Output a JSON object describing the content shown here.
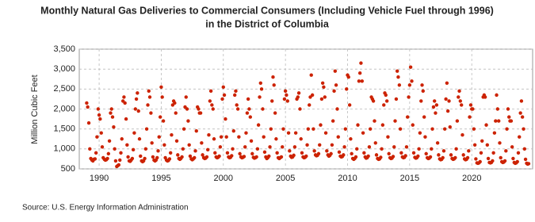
{
  "chart_data": {
    "type": "scatter",
    "title": "Monthly Natural Gas Deliveries to Commercial Consumers (Including Vehicle Fuel through 1996)",
    "subtitle": "in the District of Columbia",
    "y_label": "Million Cubic Feet",
    "source": "Source: U.S. Energy Information Administration",
    "xlim": [
      1988.4,
      2024.9
    ],
    "xticks": [
      1990,
      1995,
      2000,
      2005,
      2010,
      2015,
      2020
    ],
    "ylim": [
      500,
      3500
    ],
    "yticks": [
      500,
      {
        "value": 1000,
        "label": "1,000"
      },
      {
        "value": 1500,
        "label": "1,500"
      },
      {
        "value": 2000,
        "label": "2,000"
      },
      {
        "value": 2500,
        "label": "2,500"
      },
      {
        "value": 3000,
        "label": "3,000"
      },
      {
        "value": 3500,
        "label": "3,500"
      }
    ],
    "grid": true,
    "series": [
      {
        "color": "#cc2200",
        "x": [
          1989.0,
          1989.08,
          1989.17,
          1989.25,
          1989.33,
          1989.42,
          1989.5,
          1989.58,
          1989.67,
          1989.75,
          1989.83,
          1989.92,
          1990.0,
          1990.08,
          1990.17,
          1990.25,
          1990.33,
          1990.42,
          1990.5,
          1990.58,
          1990.67,
          1990.75,
          1990.83,
          1990.92,
          1991.0,
          1991.08,
          1991.17,
          1991.25,
          1991.33,
          1991.42,
          1991.5,
          1991.58,
          1991.67,
          1991.75,
          1991.83,
          1991.92,
          1992.0,
          1992.08,
          1992.17,
          1992.25,
          1992.33,
          1992.42,
          1992.5,
          1992.58,
          1992.67,
          1992.75,
          1992.83,
          1992.92,
          1993.0,
          1993.08,
          1993.17,
          1993.25,
          1993.33,
          1993.42,
          1993.5,
          1993.58,
          1993.67,
          1993.75,
          1993.83,
          1993.92,
          1994.0,
          1994.08,
          1994.17,
          1994.25,
          1994.33,
          1994.42,
          1994.5,
          1994.58,
          1994.67,
          1994.75,
          1994.83,
          1994.92,
          1995.0,
          1995.08,
          1995.17,
          1995.25,
          1995.33,
          1995.42,
          1995.5,
          1995.58,
          1995.67,
          1995.75,
          1995.83,
          1995.92,
          1996.0,
          1996.08,
          1996.17,
          1996.25,
          1996.33,
          1996.42,
          1996.5,
          1996.58,
          1996.67,
          1996.75,
          1996.83,
          1996.92,
          1997.0,
          1997.08,
          1997.17,
          1997.25,
          1997.33,
          1997.42,
          1997.5,
          1997.58,
          1997.67,
          1997.75,
          1997.83,
          1997.92,
          1998.0,
          1998.08,
          1998.17,
          1998.25,
          1998.33,
          1998.42,
          1998.5,
          1998.58,
          1998.67,
          1998.75,
          1998.83,
          1998.92,
          1999.0,
          1999.08,
          1999.17,
          1999.25,
          1999.33,
          1999.42,
          1999.5,
          1999.58,
          1999.67,
          1999.75,
          1999.83,
          1999.92,
          2000.0,
          2000.08,
          2000.17,
          2000.25,
          2000.33,
          2000.42,
          2000.5,
          2000.58,
          2000.67,
          2000.75,
          2000.83,
          2000.92,
          2001.0,
          2001.08,
          2001.17,
          2001.25,
          2001.33,
          2001.42,
          2001.5,
          2001.58,
          2001.67,
          2001.75,
          2001.83,
          2001.92,
          2002.0,
          2002.08,
          2002.17,
          2002.25,
          2002.33,
          2002.42,
          2002.5,
          2002.58,
          2002.67,
          2002.75,
          2002.83,
          2002.92,
          2003.0,
          2003.08,
          2003.17,
          2003.25,
          2003.33,
          2003.42,
          2003.5,
          2003.58,
          2003.67,
          2003.75,
          2003.83,
          2003.92,
          2004.0,
          2004.08,
          2004.17,
          2004.25,
          2004.33,
          2004.42,
          2004.5,
          2004.58,
          2004.67,
          2004.75,
          2004.83,
          2004.92,
          2005.0,
          2005.08,
          2005.17,
          2005.25,
          2005.33,
          2005.42,
          2005.5,
          2005.58,
          2005.67,
          2005.75,
          2005.83,
          2005.92,
          2006.0,
          2006.08,
          2006.17,
          2006.25,
          2006.33,
          2006.42,
          2006.5,
          2006.58,
          2006.67,
          2006.75,
          2006.83,
          2006.92,
          2007.0,
          2007.08,
          2007.17,
          2007.25,
          2007.33,
          2007.42,
          2007.5,
          2007.58,
          2007.67,
          2007.75,
          2007.83,
          2007.92,
          2008.0,
          2008.08,
          2008.17,
          2008.25,
          2008.33,
          2008.42,
          2008.5,
          2008.58,
          2008.67,
          2008.75,
          2008.83,
          2008.92,
          2009.0,
          2009.08,
          2009.17,
          2009.25,
          2009.33,
          2009.42,
          2009.5,
          2009.58,
          2009.67,
          2009.75,
          2009.83,
          2009.92,
          2010.0,
          2010.08,
          2010.17,
          2010.25,
          2010.33,
          2010.42,
          2010.5,
          2010.58,
          2010.67,
          2010.75,
          2010.83,
          2010.92,
          2011.0,
          2011.08,
          2011.17,
          2011.25,
          2011.33,
          2011.42,
          2011.5,
          2011.58,
          2011.67,
          2011.75,
          2011.83,
          2011.92,
          2012.0,
          2012.08,
          2012.17,
          2012.25,
          2012.33,
          2012.42,
          2012.5,
          2012.58,
          2012.67,
          2012.75,
          2012.83,
          2012.92,
          2013.0,
          2013.08,
          2013.17,
          2013.25,
          2013.33,
          2013.42,
          2013.5,
          2013.58,
          2013.67,
          2013.75,
          2013.83,
          2013.92,
          2014.0,
          2014.08,
          2014.17,
          2014.25,
          2014.33,
          2014.42,
          2014.5,
          2014.58,
          2014.67,
          2014.75,
          2014.83,
          2014.92,
          2015.0,
          2015.08,
          2015.17,
          2015.25,
          2015.33,
          2015.42,
          2015.5,
          2015.58,
          2015.67,
          2015.75,
          2015.83,
          2015.92,
          2016.0,
          2016.08,
          2016.17,
          2016.25,
          2016.33,
          2016.42,
          2016.5,
          2016.58,
          2016.67,
          2016.75,
          2016.83,
          2016.92,
          2017.0,
          2017.08,
          2017.17,
          2017.25,
          2017.33,
          2017.42,
          2017.5,
          2017.58,
          2017.67,
          2017.75,
          2017.83,
          2017.92,
          2018.0,
          2018.08,
          2018.17,
          2018.25,
          2018.33,
          2018.42,
          2018.5,
          2018.58,
          2018.67,
          2018.75,
          2018.83,
          2018.92,
          2019.0,
          2019.08,
          2019.17,
          2019.25,
          2019.33,
          2019.42,
          2019.5,
          2019.58,
          2019.67,
          2019.75,
          2019.83,
          2019.92,
          2020.0,
          2020.08,
          2020.17,
          2020.25,
          2020.33,
          2020.42,
          2020.5,
          2020.58,
          2020.67,
          2020.75,
          2020.83,
          2020.92,
          2021.0,
          2021.08,
          2021.17,
          2021.25,
          2021.33,
          2021.42,
          2021.5,
          2021.58,
          2021.67,
          2021.75,
          2021.83,
          2021.92,
          2022.0,
          2022.08,
          2022.17,
          2022.25,
          2022.33,
          2022.42,
          2022.5,
          2022.58,
          2022.67,
          2022.75,
          2022.83,
          2022.92,
          2023.0,
          2023.08,
          2023.17,
          2023.25,
          2023.33,
          2023.42,
          2023.5,
          2023.58,
          2023.67,
          2023.75,
          2023.83,
          2023.92,
          2024.0,
          2024.08,
          2024.17,
          2024.25,
          2024.33,
          2024.42,
          2024.5,
          2024.58
        ],
        "values": [
          2150,
          2050,
          1650,
          1000,
          760,
          720,
          700,
          740,
          750,
          900,
          1300,
          2000,
          1850,
          1750,
          1400,
          1050,
          780,
          740,
          720,
          730,
          760,
          880,
          1200,
          1900,
          2000,
          1800,
          1550,
          1000,
          700,
          560,
          580,
          600,
          720,
          900,
          1250,
          2200,
          2300,
          2150,
          1750,
          1100,
          800,
          700,
          690,
          720,
          760,
          980,
          1400,
          2000,
          2250,
          2400,
          1950,
          1250,
          820,
          700,
          680,
          700,
          760,
          1000,
          1500,
          2100,
          2450,
          2300,
          1900,
          1150,
          800,
          720,
          700,
          720,
          780,
          950,
          1300,
          1800,
          2550,
          2300,
          1700,
          1100,
          780,
          720,
          700,
          710,
          750,
          900,
          1350,
          2100,
          2200,
          2150,
          1900,
          1200,
          850,
          760,
          740,
          760,
          800,
          1000,
          1500,
          2050,
          2300,
          2000,
          1700,
          1100,
          820,
          750,
          730,
          750,
          780,
          950,
          1450,
          2050,
          2000,
          1900,
          1900,
          1150,
          850,
          780,
          760,
          770,
          800,
          980,
          1350,
          2200,
          2450,
          2100,
          2000,
          1250,
          900,
          800,
          780,
          790,
          820,
          1050,
          1300,
          2250,
          2550,
          2350,
          1750,
          1300,
          900,
          800,
          780,
          790,
          830,
          1000,
          1450,
          2350,
          2450,
          2100,
          2000,
          1300,
          880,
          800,
          780,
          790,
          810,
          1050,
          1400,
          1900,
          2250,
          2000,
          1800,
          1200,
          880,
          790,
          770,
          780,
          800,
          1000,
          1600,
          2300,
          2650,
          2500,
          2000,
          1300,
          920,
          800,
          760,
          780,
          820,
          1050,
          1500,
          2200,
          2800,
          2600,
          1900,
          1250,
          900,
          780,
          760,
          780,
          800,
          1050,
          1500,
          2250,
          2450,
          2350,
          2200,
          1400,
          950,
          820,
          790,
          800,
          840,
          1050,
          1400,
          2250,
          2300,
          2400,
          2000,
          1250,
          900,
          800,
          780,
          790,
          820,
          1100,
          1500,
          2100,
          2300,
          2850,
          2350,
          1500,
          950,
          850,
          830,
          840,
          880,
          1100,
          1600,
          2250,
          2650,
          2550,
          2300,
          1400,
          950,
          850,
          820,
          840,
          880,
          1100,
          1700,
          2450,
          2950,
          2600,
          2000,
          1300,
          920,
          820,
          800,
          810,
          850,
          1050,
          1500,
          2500,
          2850,
          2800,
          2100,
          1250,
          880,
          760,
          740,
          760,
          800,
          1000,
          1600,
          2700,
          2900,
          3150,
          2700,
          1400,
          900,
          800,
          770,
          780,
          820,
          1050,
          1500,
          2300,
          2250,
          2200,
          1700,
          1150,
          850,
          760,
          740,
          750,
          790,
          1000,
          1600,
          2100,
          2400,
          2350,
          2200,
          1300,
          880,
          780,
          760,
          770,
          810,
          1050,
          1700,
          2250,
          2950,
          2800,
          2600,
          1500,
          900,
          800,
          780,
          790,
          830,
          1050,
          1800,
          2300,
          2600,
          3050,
          2700,
          1600,
          900,
          790,
          770,
          780,
          820,
          1000,
          1400,
          2200,
          2600,
          2450,
          1800,
          1300,
          880,
          780,
          760,
          770,
          800,
          1000,
          1500,
          2050,
          2200,
          1900,
          2100,
          1150,
          850,
          750,
          730,
          740,
          780,
          950,
          1500,
          2250,
          2650,
          1950,
          2200,
          1550,
          850,
          760,
          740,
          750,
          780,
          1000,
          1700,
          2300,
          2450,
          2200,
          2100,
          1350,
          850,
          750,
          730,
          740,
          780,
          950,
          1800,
          2100,
          2000,
          2000,
          1500,
          1100,
          750,
          650,
          640,
          650,
          680,
          900,
          1200,
          2300,
          2350,
          2300,
          1600,
          1100,
          760,
          660,
          650,
          660,
          700,
          900,
          1400,
          1700,
          2350,
          2000,
          1700,
          1150,
          780,
          680,
          660,
          670,
          700,
          950,
          1500,
          2000,
          1800,
          1700,
          1700,
          1050,
          760,
          660,
          640,
          650,
          680,
          900,
          1300,
          1900,
          2200,
          1800,
          1500,
          1000,
          740,
          640,
          620,
          630
        ]
      }
    ]
  }
}
